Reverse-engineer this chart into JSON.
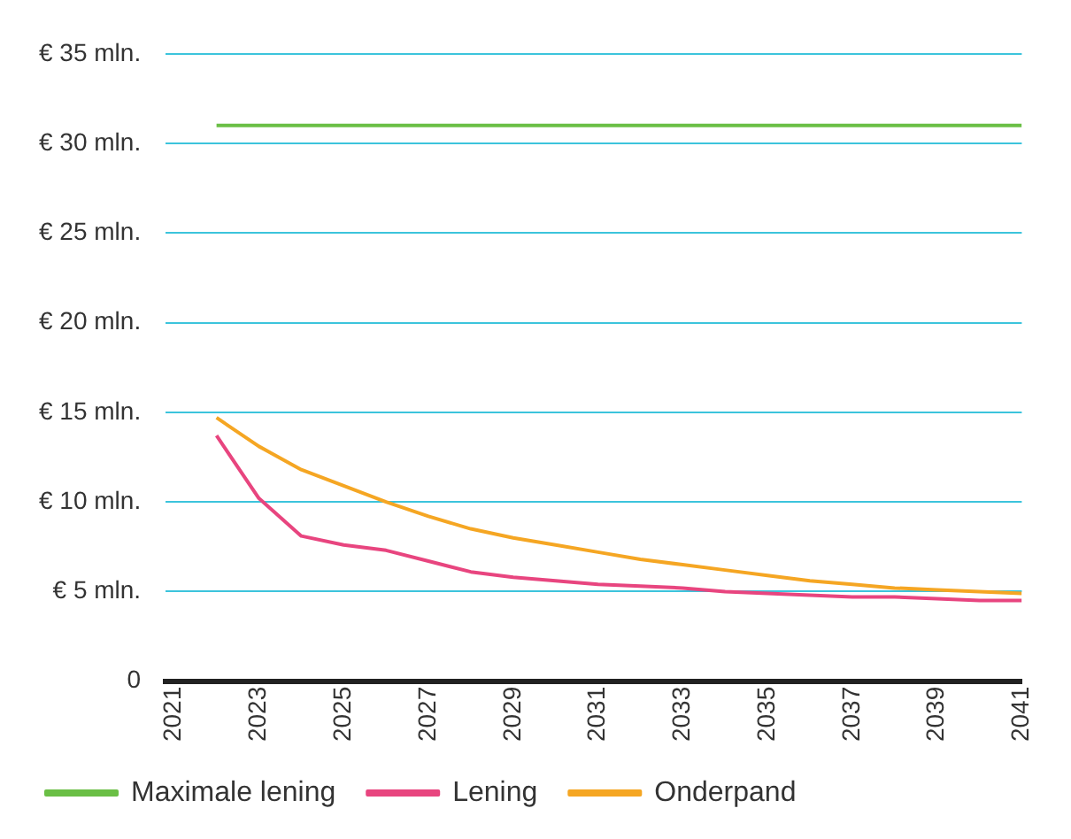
{
  "chart_data": {
    "type": "line",
    "x": [
      2022,
      2023,
      2024,
      2025,
      2026,
      2027,
      2028,
      2029,
      2030,
      2031,
      2032,
      2033,
      2034,
      2035,
      2036,
      2037,
      2038,
      2039,
      2040,
      2041
    ],
    "series": [
      {
        "name": "Maximale lening",
        "color": "#6abf45",
        "values": [
          31,
          31,
          31,
          31,
          31,
          31,
          31,
          31,
          31,
          31,
          31,
          31,
          31,
          31,
          31,
          31,
          31,
          31,
          31,
          31
        ]
      },
      {
        "name": "Lening",
        "color": "#e8457f",
        "values": [
          13.7,
          10.2,
          8.1,
          7.6,
          7.3,
          6.7,
          6.1,
          5.8,
          5.6,
          5.4,
          5.3,
          5.2,
          5.0,
          4.9,
          4.8,
          4.7,
          4.7,
          4.6,
          4.5,
          4.5
        ]
      },
      {
        "name": "Onderpand",
        "color": "#f5a623",
        "values": [
          14.7,
          13.1,
          11.8,
          10.9,
          10.0,
          9.2,
          8.5,
          8.0,
          7.6,
          7.2,
          6.8,
          6.5,
          6.2,
          5.9,
          5.6,
          5.4,
          5.2,
          5.1,
          5.0,
          4.9
        ]
      }
    ],
    "xlim": [
      2020.8,
      2041
    ],
    "xticks": [
      2021,
      2023,
      2025,
      2027,
      2029,
      2031,
      2033,
      2035,
      2037,
      2039,
      2041
    ],
    "ylim": [
      0,
      35
    ],
    "yticks": [
      0,
      {
        "value": 5,
        "label": "€ 5 mln."
      },
      {
        "value": 10,
        "label": "€ 10 mln."
      },
      {
        "value": 15,
        "label": "€ 15 mln."
      },
      {
        "value": 20,
        "label": "€ 20 mln."
      },
      {
        "value": 25,
        "label": "€ 25 mln."
      },
      {
        "value": 30,
        "label": "€ 30 mln."
      },
      {
        "value": 35,
        "label": "€ 35 mln."
      }
    ],
    "grid": "y",
    "legend": "bottom",
    "marker": "none",
    "line_style": "solid"
  }
}
